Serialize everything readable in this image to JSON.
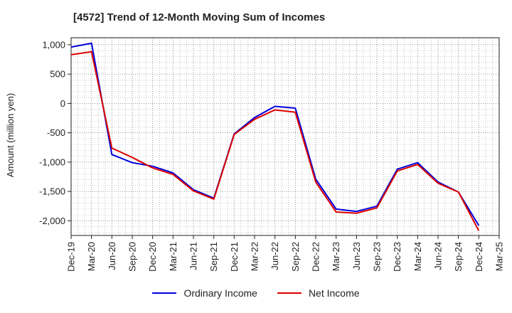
{
  "chart_data": {
    "type": "line",
    "title": "[4572]  Trend of 12-Month Moving Sum of Incomes",
    "xlabel": "",
    "ylabel": "Amount (million yen)",
    "categories": [
      "Dec-19",
      "Mar-20",
      "Jun-20",
      "Sep-20",
      "Dec-20",
      "Mar-21",
      "Jun-21",
      "Sep-21",
      "Dec-21",
      "Mar-22",
      "Jun-22",
      "Sep-22",
      "Dec-22",
      "Mar-23",
      "Jun-23",
      "Sep-23",
      "Dec-23",
      "Mar-24",
      "Jun-24",
      "Sep-24",
      "Dec-24",
      "Mar-25"
    ],
    "ylim": [
      -2250,
      1120
    ],
    "yticks": [
      1000,
      500,
      0,
      -500,
      -1000,
      -1500,
      -2000
    ],
    "ytick_labels": [
      "1,000",
      "500",
      "0",
      "-500",
      "-1,000",
      "-1,500",
      "-2,000"
    ],
    "grid": true,
    "legend_position": "bottom",
    "series": [
      {
        "name": "Ordinary Income",
        "color": "#0000dd",
        "values": [
          960,
          1025,
          -870,
          -1010,
          -1070,
          -1185,
          -1470,
          -1615,
          -520,
          -240,
          -50,
          -80,
          -1290,
          -1800,
          -1840,
          -1750,
          -1120,
          -1010,
          -1340,
          -1510,
          -2080,
          null
        ]
      },
      {
        "name": "Net Income",
        "color": "#dd0000",
        "values": [
          830,
          880,
          -760,
          -920,
          -1100,
          -1210,
          -1490,
          -1630,
          -530,
          -270,
          -110,
          -150,
          -1340,
          -1850,
          -1870,
          -1780,
          -1150,
          -1040,
          -1360,
          -1510,
          -2170,
          null
        ]
      }
    ]
  }
}
